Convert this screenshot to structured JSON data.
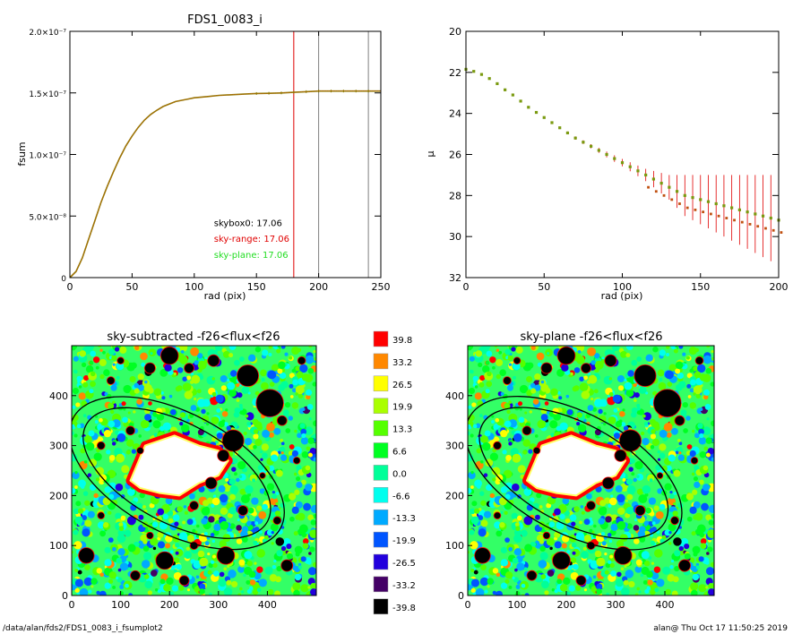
{
  "footer": {
    "path": "/data/alan/fds2/FDS1_0083_i_fsumplot2",
    "stamp": "alan@  Thu Oct 17 11:50:25 2019"
  },
  "colors": {
    "profile_line": "#8a7a00",
    "profile_overlay": "#e05010",
    "range_marker": "#e00000",
    "box_marker": "#808080",
    "errorbar": "#e00000",
    "point_main": "#7a9a10",
    "point_alt": "#c05010",
    "sky_plane_text": "#22dd22",
    "sky_range_text": "#e00000"
  },
  "chart_data": [
    {
      "id": "growth-curve",
      "type": "line",
      "title": "FDS1_0083_i",
      "xlabel": "rad (pix)",
      "ylabel": "fsum",
      "xlim": [
        0,
        250
      ],
      "ylim": [
        0,
        2e-07
      ],
      "xticks": [
        "0",
        "50",
        "100",
        "150",
        "200",
        "250"
      ],
      "xtick_values": [
        0,
        50,
        100,
        150,
        200,
        250
      ],
      "yticks": [
        "0",
        "5.0×10⁻⁸",
        "1.0×10⁻⁷",
        "1.5×10⁻⁷",
        "2.0×10⁻⁷"
      ],
      "ytick_values": [
        0,
        5e-08,
        1e-07,
        1.5e-07,
        2e-07
      ],
      "x": [
        0,
        5,
        10,
        15,
        20,
        25,
        30,
        35,
        40,
        45,
        50,
        55,
        60,
        65,
        70,
        75,
        80,
        85,
        90,
        95,
        100,
        110,
        120,
        130,
        140,
        150,
        160,
        170,
        180,
        190,
        200,
        210,
        220,
        230,
        240,
        250
      ],
      "y": [
        0,
        5e-09,
        1.6e-08,
        3.1e-08,
        4.6e-08,
        6.1e-08,
        7.4e-08,
        8.6e-08,
        9.7e-08,
        1.07e-07,
        1.15e-07,
        1.22e-07,
        1.28e-07,
        1.325e-07,
        1.36e-07,
        1.39e-07,
        1.41e-07,
        1.43e-07,
        1.44e-07,
        1.45e-07,
        1.46e-07,
        1.47e-07,
        1.48e-07,
        1.485e-07,
        1.49e-07,
        1.495e-07,
        1.497e-07,
        1.5e-07,
        1.505e-07,
        1.51e-07,
        1.515e-07,
        1.515e-07,
        1.515e-07,
        1.515e-07,
        1.515e-07,
        1.515e-07
      ],
      "vlines": [
        {
          "x": 180,
          "color": "#e00000"
        },
        {
          "x": 200,
          "color": "#808080"
        },
        {
          "x": 240,
          "color": "#808080"
        }
      ],
      "annotations": [
        {
          "text": "skybox0: 17.06",
          "color": "#000000",
          "x": 105,
          "y": 4.2e-08
        },
        {
          "text": "sky-range: 17.06",
          "color": "#e00000",
          "x": 105,
          "y": 2.9e-08
        },
        {
          "text": "sky-plane: 17.06",
          "color": "#22dd22",
          "x": 105,
          "y": 1.6e-08
        }
      ]
    },
    {
      "id": "surface-brightness",
      "type": "scatter",
      "title": "",
      "xlabel": "rad (pix)",
      "ylabel": "μ",
      "xlim": [
        0,
        200
      ],
      "ylim": [
        32,
        20
      ],
      "y_inverted": true,
      "xticks": [
        "0",
        "50",
        "100",
        "150",
        "200"
      ],
      "xtick_values": [
        0,
        50,
        100,
        150,
        200
      ],
      "yticks": [
        "20",
        "22",
        "24",
        "26",
        "28",
        "30",
        "32"
      ],
      "ytick_values": [
        20,
        22,
        24,
        26,
        28,
        30,
        32
      ],
      "x": [
        0,
        5,
        10,
        15,
        20,
        25,
        30,
        35,
        40,
        45,
        50,
        55,
        60,
        65,
        70,
        75,
        80,
        85,
        90,
        95,
        100,
        105,
        110,
        115,
        120,
        125,
        130,
        135,
        140,
        145,
        150,
        155,
        160,
        165,
        170,
        175,
        180,
        185,
        190,
        195,
        200
      ],
      "y": [
        21.85,
        21.95,
        22.1,
        22.3,
        22.55,
        22.85,
        23.1,
        23.4,
        23.7,
        23.95,
        24.2,
        24.45,
        24.7,
        24.95,
        25.2,
        25.4,
        25.6,
        25.8,
        26.0,
        26.2,
        26.4,
        26.6,
        26.8,
        27.0,
        27.2,
        27.4,
        27.6,
        27.8,
        28.0,
        28.1,
        28.2,
        28.3,
        28.4,
        28.5,
        28.6,
        28.7,
        28.8,
        28.9,
        29.0,
        29.1,
        29.2
      ],
      "errors": [
        0.02,
        0.02,
        0.02,
        0.02,
        0.02,
        0.03,
        0.03,
        0.03,
        0.04,
        0.04,
        0.05,
        0.05,
        0.06,
        0.07,
        0.08,
        0.09,
        0.1,
        0.12,
        0.14,
        0.16,
        0.18,
        0.22,
        0.26,
        0.3,
        0.4,
        0.5,
        0.6,
        0.8,
        1.0,
        1.1,
        1.2,
        1.3,
        1.4,
        1.5,
        1.6,
        1.7,
        1.8,
        1.9,
        2.0,
        2.1,
        2.2
      ]
    },
    {
      "id": "sky-subtracted-map",
      "type": "heatmap",
      "title": "sky-subtracted -f26<flux<f26",
      "xlim": [
        0,
        500
      ],
      "ylim": [
        0,
        500
      ],
      "xticks": [
        "0",
        "100",
        "200",
        "300",
        "400"
      ],
      "xtick_values": [
        0,
        100,
        200,
        300,
        400
      ],
      "yticks": [
        "0",
        "100",
        "200",
        "300",
        "400"
      ],
      "ytick_values": [
        0,
        100,
        200,
        300,
        400
      ],
      "ellipses": [
        {
          "cx": 215,
          "cy": 245,
          "a": 240,
          "b": 120,
          "angle_deg": -28
        },
        {
          "cx": 215,
          "cy": 245,
          "a": 210,
          "b": 100,
          "angle_deg": -28
        }
      ],
      "seed": 7
    },
    {
      "id": "sky-plane-map",
      "type": "heatmap",
      "title": "sky-plane -f26<flux<f26",
      "xlim": [
        0,
        500
      ],
      "ylim": [
        0,
        500
      ],
      "xticks": [
        "0",
        "100",
        "200",
        "300",
        "400"
      ],
      "xtick_values": [
        0,
        100,
        200,
        300,
        400
      ],
      "yticks": [
        "0",
        "100",
        "200",
        "300",
        "400"
      ],
      "ytick_values": [
        0,
        100,
        200,
        300,
        400
      ],
      "ellipses": [
        {
          "cx": 215,
          "cy": 245,
          "a": 240,
          "b": 120,
          "angle_deg": -28
        },
        {
          "cx": 215,
          "cy": 245,
          "a": 210,
          "b": 100,
          "angle_deg": -28
        }
      ],
      "seed": 7
    },
    {
      "id": "colorbar",
      "type": "legend",
      "labels": [
        "39.8",
        "33.2",
        "26.5",
        "19.9",
        "13.3",
        "6.6",
        "0.0",
        "-6.6",
        "-13.3",
        "-19.9",
        "-26.5",
        "-33.2",
        "-39.8"
      ],
      "colors": [
        "#ff0000",
        "#ff8800",
        "#ffff00",
        "#aaff00",
        "#55ff00",
        "#00ff22",
        "#00ff99",
        "#00ffee",
        "#00aaff",
        "#0055ff",
        "#2200dd",
        "#440066",
        "#000000"
      ]
    }
  ]
}
